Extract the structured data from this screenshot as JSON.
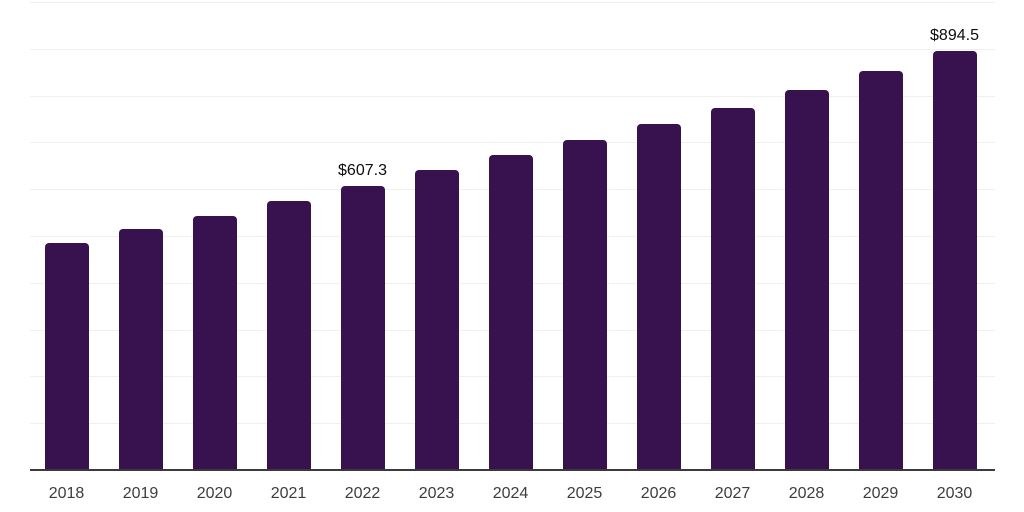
{
  "chart_data": {
    "type": "bar",
    "title": "",
    "xlabel": "",
    "ylabel": "",
    "categories": [
      "2018",
      "2019",
      "2020",
      "2021",
      "2022",
      "2023",
      "2024",
      "2025",
      "2026",
      "2027",
      "2028",
      "2029",
      "2030"
    ],
    "values": [
      485.9,
      514.0,
      543.7,
      574.9,
      607.3,
      640.0,
      672.2,
      704.5,
      739.0,
      774.3,
      812.5,
      853.0,
      894.5
    ],
    "data_labels": {
      "2022": "$607.3",
      "2030": "$894.5"
    },
    "ylim": [
      0,
      1000
    ],
    "y_gridline_interval": 100,
    "grid": "horizontal",
    "legend": "none",
    "y_axis_tick_labels": "none",
    "colors": {
      "bar": "#38124F",
      "gridline": "#f0f0f0",
      "axis_line": "#3b3b3b",
      "tick_label": "#3d3d3d",
      "data_label": "#0d0d0d",
      "background": "#ffffff"
    }
  }
}
